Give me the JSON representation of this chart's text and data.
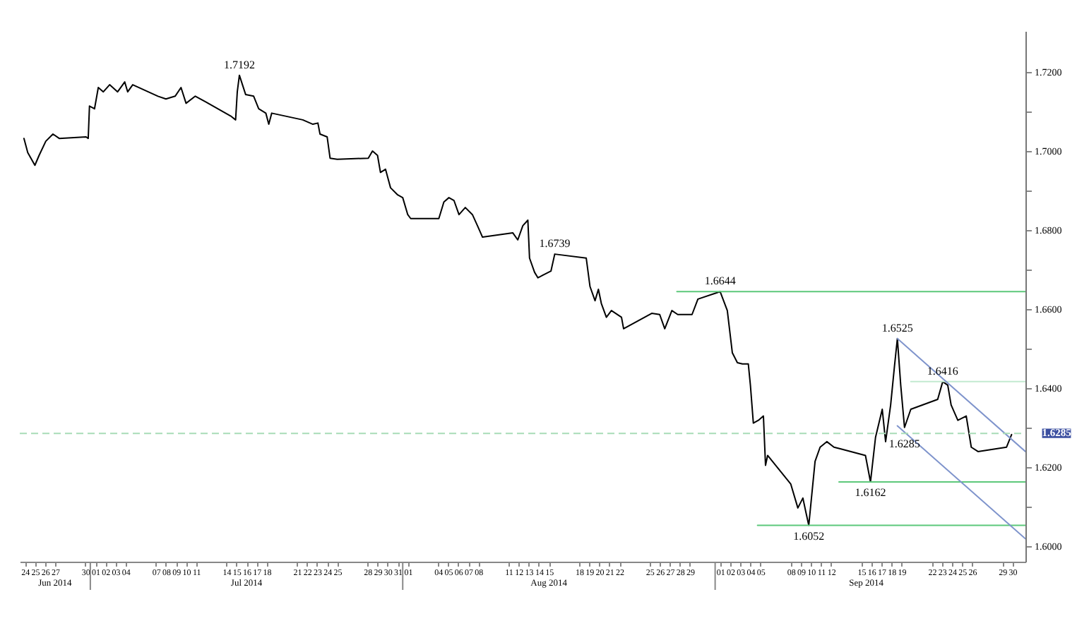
{
  "chart_data": {
    "type": "line",
    "xlim": [
      "2014-06-23T12:00",
      "2014-10-01T07:00"
    ],
    "ylim": [
      1.596,
      1.7304
    ],
    "xticks": [
      {
        "value": "2014-06-24",
        "label": "24"
      },
      {
        "value": "2014-06-25",
        "label": "25"
      },
      {
        "value": "2014-06-26",
        "label": "26"
      },
      {
        "value": "2014-06-27",
        "label": "27"
      },
      {
        "value": "2014-06-30",
        "label": "30"
      },
      {
        "value": "2014-07-01",
        "label": "01"
      },
      {
        "value": "2014-07-02",
        "label": "02"
      },
      {
        "value": "2014-07-03",
        "label": "03"
      },
      {
        "value": "2014-07-04",
        "label": "04"
      },
      {
        "value": "2014-07-07",
        "label": "07"
      },
      {
        "value": "2014-07-08",
        "label": "08"
      },
      {
        "value": "2014-07-09",
        "label": "09"
      },
      {
        "value": "2014-07-10",
        "label": "10"
      },
      {
        "value": "2014-07-11",
        "label": "11"
      },
      {
        "value": "2014-07-14",
        "label": "14"
      },
      {
        "value": "2014-07-15",
        "label": "15"
      },
      {
        "value": "2014-07-16",
        "label": "16"
      },
      {
        "value": "2014-07-17",
        "label": "17"
      },
      {
        "value": "2014-07-18",
        "label": "18"
      },
      {
        "value": "2014-07-21",
        "label": "21"
      },
      {
        "value": "2014-07-22",
        "label": "22"
      },
      {
        "value": "2014-07-23",
        "label": "23"
      },
      {
        "value": "2014-07-24",
        "label": "24"
      },
      {
        "value": "2014-07-25",
        "label": "25"
      },
      {
        "value": "2014-07-28",
        "label": "28"
      },
      {
        "value": "2014-07-29",
        "label": "29"
      },
      {
        "value": "2014-07-30",
        "label": "30"
      },
      {
        "value": "2014-07-31",
        "label": "31"
      },
      {
        "value": "2014-08-01",
        "label": "01"
      },
      {
        "value": "2014-08-04",
        "label": "04"
      },
      {
        "value": "2014-08-05",
        "label": "05"
      },
      {
        "value": "2014-08-06",
        "label": "06"
      },
      {
        "value": "2014-08-07",
        "label": "07"
      },
      {
        "value": "2014-08-08",
        "label": "08"
      },
      {
        "value": "2014-08-11",
        "label": "11"
      },
      {
        "value": "2014-08-12",
        "label": "12"
      },
      {
        "value": "2014-08-13",
        "label": "13"
      },
      {
        "value": "2014-08-14",
        "label": "14"
      },
      {
        "value": "2014-08-15",
        "label": "15"
      },
      {
        "value": "2014-08-18",
        "label": "18"
      },
      {
        "value": "2014-08-19",
        "label": "19"
      },
      {
        "value": "2014-08-20",
        "label": "20"
      },
      {
        "value": "2014-08-21",
        "label": "21"
      },
      {
        "value": "2014-08-22",
        "label": "22"
      },
      {
        "value": "2014-08-25",
        "label": "25"
      },
      {
        "value": "2014-08-26",
        "label": "26"
      },
      {
        "value": "2014-08-27",
        "label": "27"
      },
      {
        "value": "2014-08-28",
        "label": "28"
      },
      {
        "value": "2014-08-29",
        "label": "29"
      },
      {
        "value": "2014-09-01",
        "label": "01"
      },
      {
        "value": "2014-09-02",
        "label": "02"
      },
      {
        "value": "2014-09-03",
        "label": "03"
      },
      {
        "value": "2014-09-04",
        "label": "04"
      },
      {
        "value": "2014-09-05",
        "label": "05"
      },
      {
        "value": "2014-09-08",
        "label": "08"
      },
      {
        "value": "2014-09-09",
        "label": "09"
      },
      {
        "value": "2014-09-10",
        "label": "10"
      },
      {
        "value": "2014-09-11",
        "label": "11"
      },
      {
        "value": "2014-09-12",
        "label": "12"
      },
      {
        "value": "2014-09-15",
        "label": "15"
      },
      {
        "value": "2014-09-16",
        "label": "16"
      },
      {
        "value": "2014-09-17",
        "label": "17"
      },
      {
        "value": "2014-09-18",
        "label": "18"
      },
      {
        "value": "2014-09-19",
        "label": "19"
      },
      {
        "value": "2014-09-22",
        "label": "22"
      },
      {
        "value": "2014-09-23",
        "label": "23"
      },
      {
        "value": "2014-09-24",
        "label": "24"
      },
      {
        "value": "2014-09-25",
        "label": "25"
      },
      {
        "value": "2014-09-26",
        "label": "26"
      },
      {
        "value": "2014-09-29",
        "label": "29"
      },
      {
        "value": "2014-09-30",
        "label": "30"
      }
    ],
    "yticks": [
      {
        "value": 1.6,
        "label": "1.6000"
      },
      {
        "value": 1.61,
        "label": null
      },
      {
        "value": 1.62,
        "label": "1.6200"
      },
      {
        "value": 1.63,
        "label": null
      },
      {
        "value": 1.64,
        "label": "1.6400"
      },
      {
        "value": 1.65,
        "label": null
      },
      {
        "value": 1.66,
        "label": "1.6600"
      },
      {
        "value": 1.67,
        "label": null
      },
      {
        "value": 1.68,
        "label": "1.6800"
      },
      {
        "value": 1.69,
        "label": null
      },
      {
        "value": 1.7,
        "label": "1.7000"
      },
      {
        "value": 1.71,
        "label": null
      },
      {
        "value": 1.72,
        "label": "1.7200"
      }
    ],
    "grid": false,
    "series": [
      {
        "color": "#000000",
        "line_style": "solid",
        "x": [
          "2014-06-23T22:00",
          "2014-06-24T07:00",
          "2014-06-25T00:00",
          "2014-06-25T10:00",
          "2014-06-26T02:00",
          "2014-06-26T19:00",
          "2014-06-27T10:00",
          "2014-06-30T02:00",
          "2014-06-30T07:00",
          "2014-06-30T10:00",
          "2014-06-30T22:00",
          "2014-07-01T07:00",
          "2014-07-01T19:00",
          "2014-07-02T10:00",
          "2014-07-03T05:00",
          "2014-07-03T22:00",
          "2014-07-04T05:00",
          "2014-07-04T17:00",
          "2014-07-07T05:00",
          "2014-07-08T00:00",
          "2014-07-08T22:00",
          "2014-07-09T12:00",
          "2014-07-10T00:00",
          "2014-07-10T22:00",
          "2014-07-11T22:00",
          "2014-07-14T10:00",
          "2014-07-14T22:00",
          "2014-07-15T02:00",
          "2014-07-15T07:00",
          "2014-07-15T22:00",
          "2014-07-16T17:00",
          "2014-07-17T05:00",
          "2014-07-17T22:00",
          "2014-07-18T05:00",
          "2014-07-18T12:00",
          "2014-07-21T14:00",
          "2014-07-22T14:00",
          "2014-07-23T02:00",
          "2014-07-23T07:00",
          "2014-07-24T00:00",
          "2014-07-24T07:00",
          "2014-07-25T00:00",
          "2014-07-28T02:00",
          "2014-07-28T12:00",
          "2014-07-29T00:00",
          "2014-07-29T07:00",
          "2014-07-29T19:00",
          "2014-07-30T07:00",
          "2014-07-31T00:00",
          "2014-07-31T12:00",
          "2014-08-01T00:00",
          "2014-08-01T07:00",
          "2014-08-04T02:00",
          "2014-08-04T14:00",
          "2014-08-05T02:00",
          "2014-08-05T14:00",
          "2014-08-06T02:00",
          "2014-08-06T17:00",
          "2014-08-07T10:00",
          "2014-08-07T22:00",
          "2014-08-08T10:00",
          "2014-08-11T10:00",
          "2014-08-11T22:00",
          "2014-08-12T10:00",
          "2014-08-12T22:00",
          "2014-08-13T02:00",
          "2014-08-13T14:00",
          "2014-08-13T22:00",
          "2014-08-14T10:00",
          "2014-08-15T05:00",
          "2014-08-15T14:00",
          "2014-08-18T17:00",
          "2014-08-19T02:00",
          "2014-08-19T14:00",
          "2014-08-19T22:00",
          "2014-08-20T05:00",
          "2014-08-20T17:00",
          "2014-08-21T05:00",
          "2014-08-22T05:00",
          "2014-08-22T10:00",
          "2014-08-25T05:00",
          "2014-08-26T00:00",
          "2014-08-26T12:00",
          "2014-08-27T05:00",
          "2014-08-27T19:00",
          "2014-08-29T05:00",
          "2014-08-29T19:00",
          "2014-09-01T00:00",
          "2014-09-01T17:00",
          "2014-09-02T05:00",
          "2014-09-02T17:00",
          "2014-09-03T05:00",
          "2014-09-03T19:00",
          "2014-09-04T00:00",
          "2014-09-04T07:00",
          "2014-09-04T19:00",
          "2014-09-05T07:00",
          "2014-09-05T12:00",
          "2014-09-05T17:00",
          "2014-09-08T00:00",
          "2014-09-08T17:00",
          "2014-09-09T05:00",
          "2014-09-09T12:00",
          "2014-09-09T19:00",
          "2014-09-10T10:00",
          "2014-09-10T22:00",
          "2014-09-11T14:00",
          "2014-09-12T07:00",
          "2014-09-12T22:00",
          "2014-09-15T10:00",
          "2014-09-15T22:00",
          "2014-09-16T10:00",
          "2014-09-17T02:00",
          "2014-09-17T10:00",
          "2014-09-17T22:00",
          "2014-09-18T07:00",
          "2014-09-18T14:00",
          "2014-09-18T22:00",
          "2014-09-19T07:00",
          "2014-09-19T22:00",
          "2014-09-22T14:00",
          "2014-09-23T02:00",
          "2014-09-23T14:00",
          "2014-09-23T22:00",
          "2014-09-24T14:00",
          "2014-09-25T10:00",
          "2014-09-25T22:00",
          "2014-09-26T14:00",
          "2014-09-29T10:00",
          "2014-09-29T22:00"
        ],
        "values": [
          1.7032,
          1.6996,
          1.6964,
          1.6989,
          1.7025,
          1.7043,
          1.7032,
          1.7036,
          1.7032,
          1.7114,
          1.7107,
          1.7161,
          1.715,
          1.7168,
          1.715,
          1.7175,
          1.715,
          1.7168,
          1.7139,
          1.7132,
          1.7139,
          1.7161,
          1.7121,
          1.7139,
          1.7125,
          1.7089,
          1.7079,
          1.715,
          1.7192,
          1.7143,
          1.7139,
          1.7107,
          1.7096,
          1.7068,
          1.7096,
          1.7079,
          1.7068,
          1.7071,
          1.7043,
          1.7036,
          1.6982,
          1.6979,
          1.6982,
          1.7,
          1.6989,
          1.6946,
          1.6954,
          1.6907,
          1.6889,
          1.6882,
          1.6839,
          1.6829,
          1.6829,
          1.6871,
          1.6882,
          1.6875,
          1.6839,
          1.6857,
          1.6839,
          1.6811,
          1.6782,
          1.6793,
          1.6775,
          1.6811,
          1.6825,
          1.6729,
          1.6693,
          1.6679,
          1.6686,
          1.6696,
          1.6739,
          1.6729,
          1.6657,
          1.6621,
          1.665,
          1.6614,
          1.6579,
          1.6596,
          1.6579,
          1.655,
          1.6589,
          1.6586,
          1.655,
          1.6596,
          1.6586,
          1.6586,
          1.6625,
          1.6644,
          1.6596,
          1.6489,
          1.6464,
          1.6461,
          1.6461,
          1.6407,
          1.6311,
          1.6318,
          1.6329,
          1.6204,
          1.6229,
          1.6157,
          1.6096,
          1.6121,
          1.6086,
          1.6052,
          1.6214,
          1.625,
          1.6264,
          1.625,
          1.6246,
          1.6229,
          1.6162,
          1.6275,
          1.6346,
          1.6264,
          1.6357,
          1.6454,
          1.6525,
          1.6407,
          1.63,
          1.6346,
          1.6371,
          1.6416,
          1.6407,
          1.6357,
          1.6318,
          1.6329,
          1.625,
          1.6239,
          1.625,
          1.6282
        ]
      },
      {
        "color": "#5cc87a",
        "line_style": "solid",
        "x": [
          "2014-08-27T17:00",
          "2014-10-01T07:00"
        ],
        "values": [
          1.6644,
          1.6644
        ]
      },
      {
        "color": "#c2ead0",
        "line_style": "solid",
        "x": [
          "2014-09-19T22:00",
          "2014-10-01T07:00"
        ],
        "values": [
          1.6416,
          1.6416
        ]
      },
      {
        "color": "#5cc87a",
        "line_style": "solid",
        "x": [
          "2014-09-12T19:00",
          "2014-10-01T07:00"
        ],
        "values": [
          1.6162,
          1.6162
        ]
      },
      {
        "color": "#5cc87a",
        "line_style": "solid",
        "x": [
          "2014-09-04T17:00",
          "2014-10-01T07:00"
        ],
        "values": [
          1.6052,
          1.6052
        ]
      },
      {
        "color": "#7f94cc",
        "line_style": "solid",
        "x": [
          "2014-09-18T14:00",
          "2014-10-01T07:00"
        ],
        "values": [
          1.6525,
          1.6239
        ]
      },
      {
        "color": "#7f94cc",
        "line_style": "solid",
        "x": [
          "2014-09-18T14:00",
          "2014-10-01T07:00"
        ],
        "values": [
          1.6304,
          1.6018
        ]
      }
    ],
    "ref_lines": [
      {
        "axis": "y",
        "value": 1.6285,
        "label": "1.6285",
        "color": "#a8dcb6",
        "line_style": "dashed"
      }
    ],
    "annotations": [
      {
        "text": "1.7192",
        "x": "2014-07-15T07:00",
        "y": 1.7192
      },
      {
        "text": "1.6739",
        "x": "2014-08-15T14:00",
        "y": 1.6739
      },
      {
        "text": "1.6644",
        "x": "2014-09-01T00:00",
        "y": 1.6644
      },
      {
        "text": "1.6525",
        "x": "2014-09-18T14:00",
        "y": 1.6525
      },
      {
        "text": "1.6416",
        "x": "2014-09-23T02:00",
        "y": 1.6416
      },
      {
        "text": "1.6285",
        "x": "2014-09-19T07:00",
        "y": 1.6285
      },
      {
        "text": "1.6162",
        "x": "2014-09-15T22:00",
        "y": 1.6162
      },
      {
        "text": "1.6052",
        "x": "2014-09-09T19:00",
        "y": 1.6052
      },
      "Jun 2014",
      "Jul 2014",
      "Aug 2014",
      "Sep 2014"
    ]
  }
}
